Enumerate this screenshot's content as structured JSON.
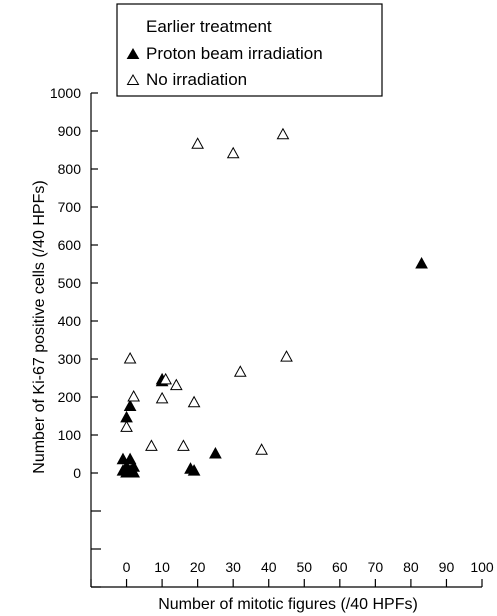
{
  "chart_data": {
    "type": "scatter",
    "xlabel": "Number of mitotic figures (/40 HPFs)",
    "ylabel": "Number of Ki-67 positive cells (/40 HPFs)",
    "xlim": [
      -10,
      100
    ],
    "ylim": [
      -300,
      1000
    ],
    "x_ticks": [
      0,
      10,
      20,
      30,
      40,
      50,
      60,
      70,
      80,
      90,
      100
    ],
    "y_ticks": [
      0,
      100,
      200,
      300,
      400,
      500,
      600,
      700,
      800,
      900,
      1000
    ],
    "x_tick_labels": [
      "0",
      "10",
      "20",
      "30",
      "40",
      "50",
      "60",
      "70",
      "80",
      "90",
      "100"
    ],
    "y_tick_labels": [
      "0",
      "100",
      "200",
      "300",
      "400",
      "500",
      "600",
      "700",
      "800",
      "900",
      "1000"
    ],
    "legend": {
      "title": "Earlier treatment",
      "placement": "top"
    },
    "series": [
      {
        "name": "Proton beam irradiation",
        "marker": "filled-triangle",
        "color": "#000000",
        "points": [
          {
            "x": -1,
            "y": 35
          },
          {
            "x": 0,
            "y": 15
          },
          {
            "x": -1,
            "y": 5
          },
          {
            "x": 0,
            "y": 0
          },
          {
            "x": 1,
            "y": 5
          },
          {
            "x": 2,
            "y": 0
          },
          {
            "x": 1,
            "y": 35
          },
          {
            "x": 2,
            "y": 15
          },
          {
            "x": 0,
            "y": 145
          },
          {
            "x": 1,
            "y": 175
          },
          {
            "x": 10,
            "y": 240
          },
          {
            "x": 10,
            "y": 245
          },
          {
            "x": 18,
            "y": 10
          },
          {
            "x": 19,
            "y": 5
          },
          {
            "x": 25,
            "y": 50
          },
          {
            "x": 83,
            "y": 550
          }
        ]
      },
      {
        "name": "No irradiation",
        "marker": "open-triangle",
        "color": "#000000",
        "points": [
          {
            "x": 0,
            "y": 120
          },
          {
            "x": 1,
            "y": 300
          },
          {
            "x": 2,
            "y": 200
          },
          {
            "x": 7,
            "y": 70
          },
          {
            "x": 10,
            "y": 195
          },
          {
            "x": 11,
            "y": 245
          },
          {
            "x": 14,
            "y": 230
          },
          {
            "x": 16,
            "y": 70
          },
          {
            "x": 19,
            "y": 185
          },
          {
            "x": 20,
            "y": 865
          },
          {
            "x": 30,
            "y": 840
          },
          {
            "x": 32,
            "y": 265
          },
          {
            "x": 38,
            "y": 60
          },
          {
            "x": 44,
            "y": 890
          },
          {
            "x": 45,
            "y": 305
          }
        ]
      }
    ]
  }
}
